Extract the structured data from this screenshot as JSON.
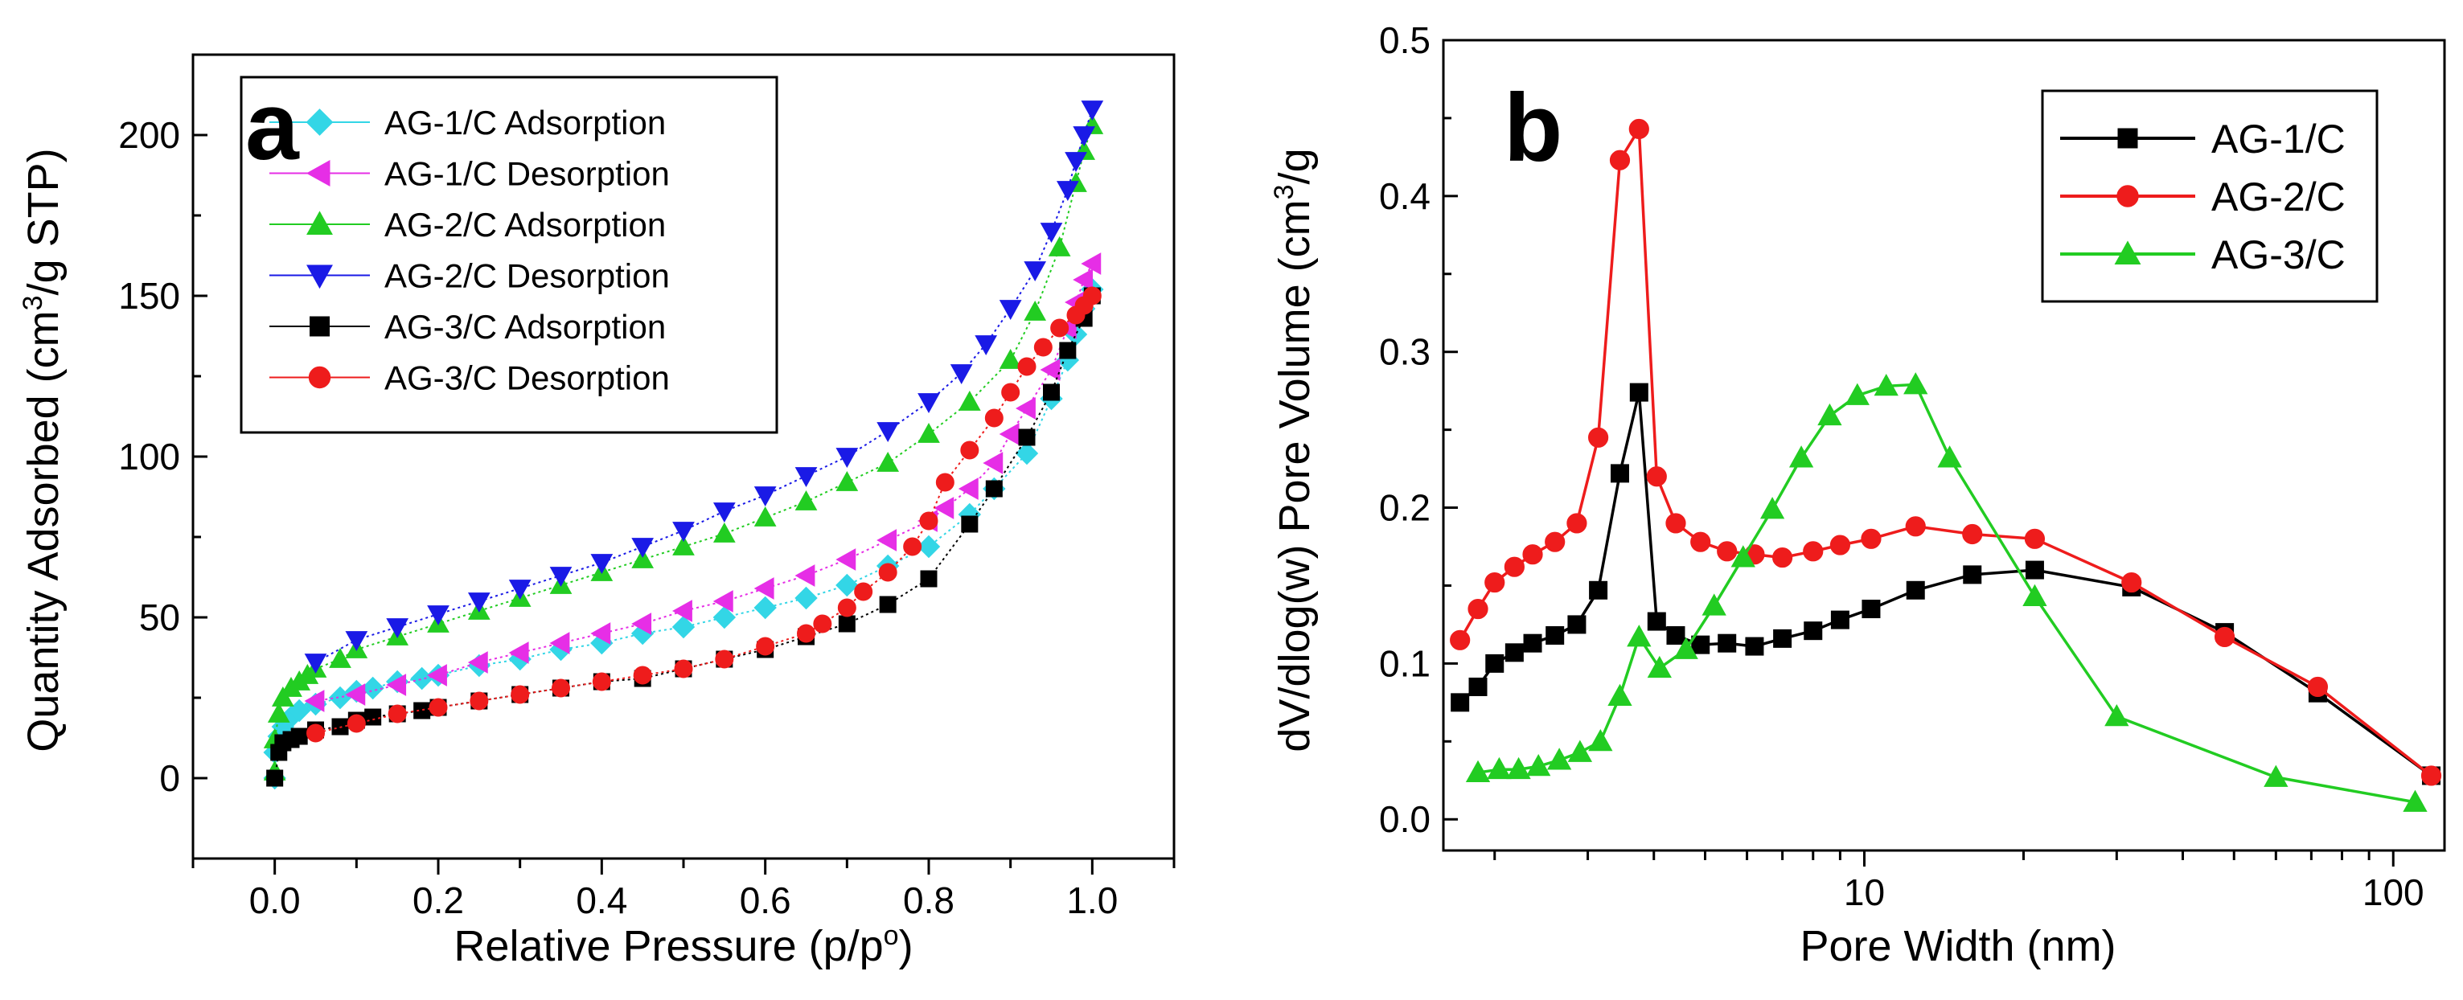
{
  "chart_data": [
    {
      "panel": "a",
      "type": "scatter",
      "xlabel": "Relative Pressure (p/p",
      "xlabel_sup": "o",
      "xlabel_end": ")",
      "ylabel": "Quantity Adsorbed (cm",
      "ylabel_sup": "3",
      "ylabel_end": "/g STP)",
      "xlim": [
        -0.1,
        1.1
      ],
      "ylim": [
        -25,
        225
      ],
      "xticks": [
        0.0,
        0.2,
        0.4,
        0.6,
        0.8,
        1.0
      ],
      "xtick_labels": [
        "0.0",
        "0.2",
        "0.4",
        "0.6",
        "0.8",
        "1.0"
      ],
      "yticks": [
        0,
        50,
        100,
        150,
        200
      ],
      "ytick_labels": [
        "0",
        "50",
        "100",
        "150",
        "200"
      ],
      "legend_position": "top-left",
      "series": [
        {
          "name": "AG-1/C Adsorption",
          "color": "#33d6e6",
          "marker": "diamond",
          "x": [
            0.0,
            0.0,
            0.005,
            0.01,
            0.02,
            0.03,
            0.05,
            0.08,
            0.1,
            0.12,
            0.15,
            0.18,
            0.2,
            0.25,
            0.3,
            0.35,
            0.4,
            0.45,
            0.5,
            0.55,
            0.6,
            0.65,
            0.7,
            0.75,
            0.8,
            0.85,
            0.88,
            0.92,
            0.95,
            0.97,
            0.98,
            0.99,
            1.0
          ],
          "y": [
            0,
            8,
            13,
            16,
            19,
            21,
            23,
            25,
            27,
            28,
            30,
            31,
            32,
            35,
            37,
            40,
            42,
            45,
            47,
            50,
            53,
            56,
            60,
            66,
            72,
            82,
            90,
            101,
            118,
            130,
            138,
            146,
            152
          ]
        },
        {
          "name": "AG-1/C Desorption",
          "color": "#e62ee6",
          "marker": "triangle-left",
          "x": [
            1.0,
            0.99,
            0.98,
            0.97,
            0.95,
            0.92,
            0.9,
            0.88,
            0.85,
            0.82,
            0.8,
            0.75,
            0.7,
            0.65,
            0.6,
            0.55,
            0.5,
            0.45,
            0.4,
            0.35,
            0.3,
            0.25,
            0.2,
            0.15,
            0.1,
            0.05
          ],
          "y": [
            160,
            155,
            148,
            140,
            127,
            115,
            107,
            98,
            90,
            84,
            80,
            74,
            68,
            63,
            59,
            55,
            52,
            48,
            45,
            42,
            39,
            36,
            32,
            29,
            26,
            24
          ]
        },
        {
          "name": "AG-2/C Adsorption",
          "color": "#22cc22",
          "marker": "triangle-up",
          "x": [
            0.0,
            0.0,
            0.005,
            0.01,
            0.02,
            0.03,
            0.04,
            0.05,
            0.08,
            0.1,
            0.15,
            0.2,
            0.25,
            0.3,
            0.35,
            0.4,
            0.45,
            0.5,
            0.55,
            0.6,
            0.65,
            0.7,
            0.75,
            0.8,
            0.85,
            0.9,
            0.93,
            0.96,
            0.98,
            0.99,
            1.0
          ],
          "y": [
            2,
            12,
            20,
            25,
            28,
            30,
            32,
            34,
            37,
            40,
            44,
            48,
            52,
            56,
            60,
            64,
            68,
            72,
            76,
            81,
            86,
            92,
            98,
            107,
            117,
            130,
            145,
            165,
            185,
            195,
            203
          ]
        },
        {
          "name": "AG-2/C Desorption",
          "color": "#1a1ae6",
          "marker": "triangle-down",
          "x": [
            1.0,
            0.99,
            0.98,
            0.97,
            0.95,
            0.93,
            0.9,
            0.87,
            0.84,
            0.8,
            0.75,
            0.7,
            0.65,
            0.6,
            0.55,
            0.5,
            0.45,
            0.4,
            0.35,
            0.3,
            0.25,
            0.2,
            0.15,
            0.1,
            0.05
          ],
          "y": [
            208,
            200,
            192,
            183,
            170,
            158,
            146,
            135,
            126,
            117,
            108,
            100,
            94,
            88,
            83,
            77,
            72,
            67,
            63,
            59,
            55,
            51,
            47,
            43,
            36
          ]
        },
        {
          "name": "AG-3/C Adsorption",
          "color": "#000000",
          "marker": "square",
          "x": [
            0.0,
            0.005,
            0.01,
            0.02,
            0.03,
            0.05,
            0.08,
            0.1,
            0.12,
            0.15,
            0.18,
            0.2,
            0.25,
            0.3,
            0.35,
            0.4,
            0.45,
            0.5,
            0.55,
            0.6,
            0.65,
            0.7,
            0.75,
            0.8,
            0.85,
            0.88,
            0.92,
            0.95,
            0.97,
            0.99,
            1.0
          ],
          "y": [
            0,
            8,
            11,
            12,
            13,
            15,
            16,
            18,
            19,
            20,
            21,
            22,
            24,
            26,
            28,
            30,
            31,
            34,
            37,
            40,
            44,
            48,
            54,
            62,
            79,
            90,
            106,
            120,
            133,
            143,
            150
          ]
        },
        {
          "name": "AG-3/C Desorption",
          "color": "#ee1c1c",
          "marker": "circle",
          "x": [
            1.0,
            0.99,
            0.98,
            0.96,
            0.94,
            0.92,
            0.9,
            0.88,
            0.85,
            0.82,
            0.8,
            0.78,
            0.75,
            0.72,
            0.7,
            0.67,
            0.65,
            0.6,
            0.55,
            0.5,
            0.45,
            0.4,
            0.35,
            0.3,
            0.25,
            0.2,
            0.15,
            0.1,
            0.05
          ],
          "y": [
            150,
            147,
            144,
            140,
            134,
            128,
            120,
            112,
            102,
            92,
            80,
            72,
            64,
            58,
            53,
            48,
            45,
            41,
            37,
            34,
            32,
            30,
            28,
            26,
            24,
            22,
            20,
            17,
            14
          ]
        }
      ],
      "panel_letter": "a"
    },
    {
      "panel": "b",
      "type": "line",
      "xscale": "log",
      "xlabel": "Pore Width (nm)",
      "ylabel": "dV/dlog(w) Pore Volume (cm",
      "ylabel_sup": "3",
      "ylabel_end": "/g",
      "xlim": [
        1.6,
        125
      ],
      "ylim": [
        -0.02,
        0.5
      ],
      "xticks": [
        10,
        100
      ],
      "xtick_labels": [
        "10",
        "100"
      ],
      "yticks": [
        0.0,
        0.1,
        0.2,
        0.3,
        0.4,
        0.5
      ],
      "ytick_labels": [
        "0.0",
        "0.1",
        "0.2",
        "0.3",
        "0.4",
        "0.5"
      ],
      "legend_position": "top-right",
      "series": [
        {
          "name": "AG-1/C",
          "color": "#000000",
          "marker": "square",
          "x": [
            1.72,
            1.86,
            2.0,
            2.18,
            2.36,
            2.6,
            2.86,
            3.14,
            3.45,
            3.75,
            4.05,
            4.4,
            4.9,
            5.5,
            6.2,
            7.0,
            8.0,
            9.0,
            10.3,
            12.5,
            16.0,
            21.0,
            32.0,
            48.0,
            72.0,
            118.0
          ],
          "y": [
            0.075,
            0.085,
            0.1,
            0.107,
            0.113,
            0.118,
            0.125,
            0.147,
            0.222,
            0.274,
            0.127,
            0.118,
            0.112,
            0.113,
            0.111,
            0.116,
            0.121,
            0.128,
            0.135,
            0.147,
            0.157,
            0.16,
            0.149,
            0.12,
            0.081,
            0.028
          ]
        },
        {
          "name": "AG-2/C",
          "color": "#ee1c1c",
          "marker": "circle",
          "x": [
            1.72,
            1.86,
            2.0,
            2.18,
            2.36,
            2.6,
            2.86,
            3.14,
            3.45,
            3.75,
            4.05,
            4.4,
            4.9,
            5.5,
            6.2,
            7.0,
            8.0,
            9.0,
            10.3,
            12.5,
            16.0,
            21.0,
            32.0,
            48.0,
            72.0,
            118.0
          ],
          "y": [
            0.115,
            0.135,
            0.152,
            0.162,
            0.17,
            0.178,
            0.19,
            0.245,
            0.423,
            0.443,
            0.22,
            0.19,
            0.178,
            0.172,
            0.17,
            0.168,
            0.172,
            0.176,
            0.18,
            0.188,
            0.183,
            0.18,
            0.152,
            0.117,
            0.085,
            0.028
          ]
        },
        {
          "name": "AG-3/C",
          "color": "#22cc22",
          "marker": "triangle-up",
          "x": [
            1.86,
            2.04,
            2.22,
            2.42,
            2.65,
            2.9,
            3.17,
            3.45,
            3.75,
            4.1,
            4.6,
            5.2,
            5.9,
            6.7,
            7.6,
            8.6,
            9.7,
            11.0,
            12.5,
            14.5,
            21.0,
            30.0,
            60.0,
            110.0
          ],
          "y": [
            0.03,
            0.032,
            0.032,
            0.034,
            0.038,
            0.043,
            0.05,
            0.079,
            0.117,
            0.097,
            0.109,
            0.137,
            0.168,
            0.199,
            0.232,
            0.259,
            0.272,
            0.278,
            0.279,
            0.232,
            0.143,
            0.066,
            0.027,
            0.011
          ]
        }
      ],
      "panel_letter": "b"
    }
  ]
}
